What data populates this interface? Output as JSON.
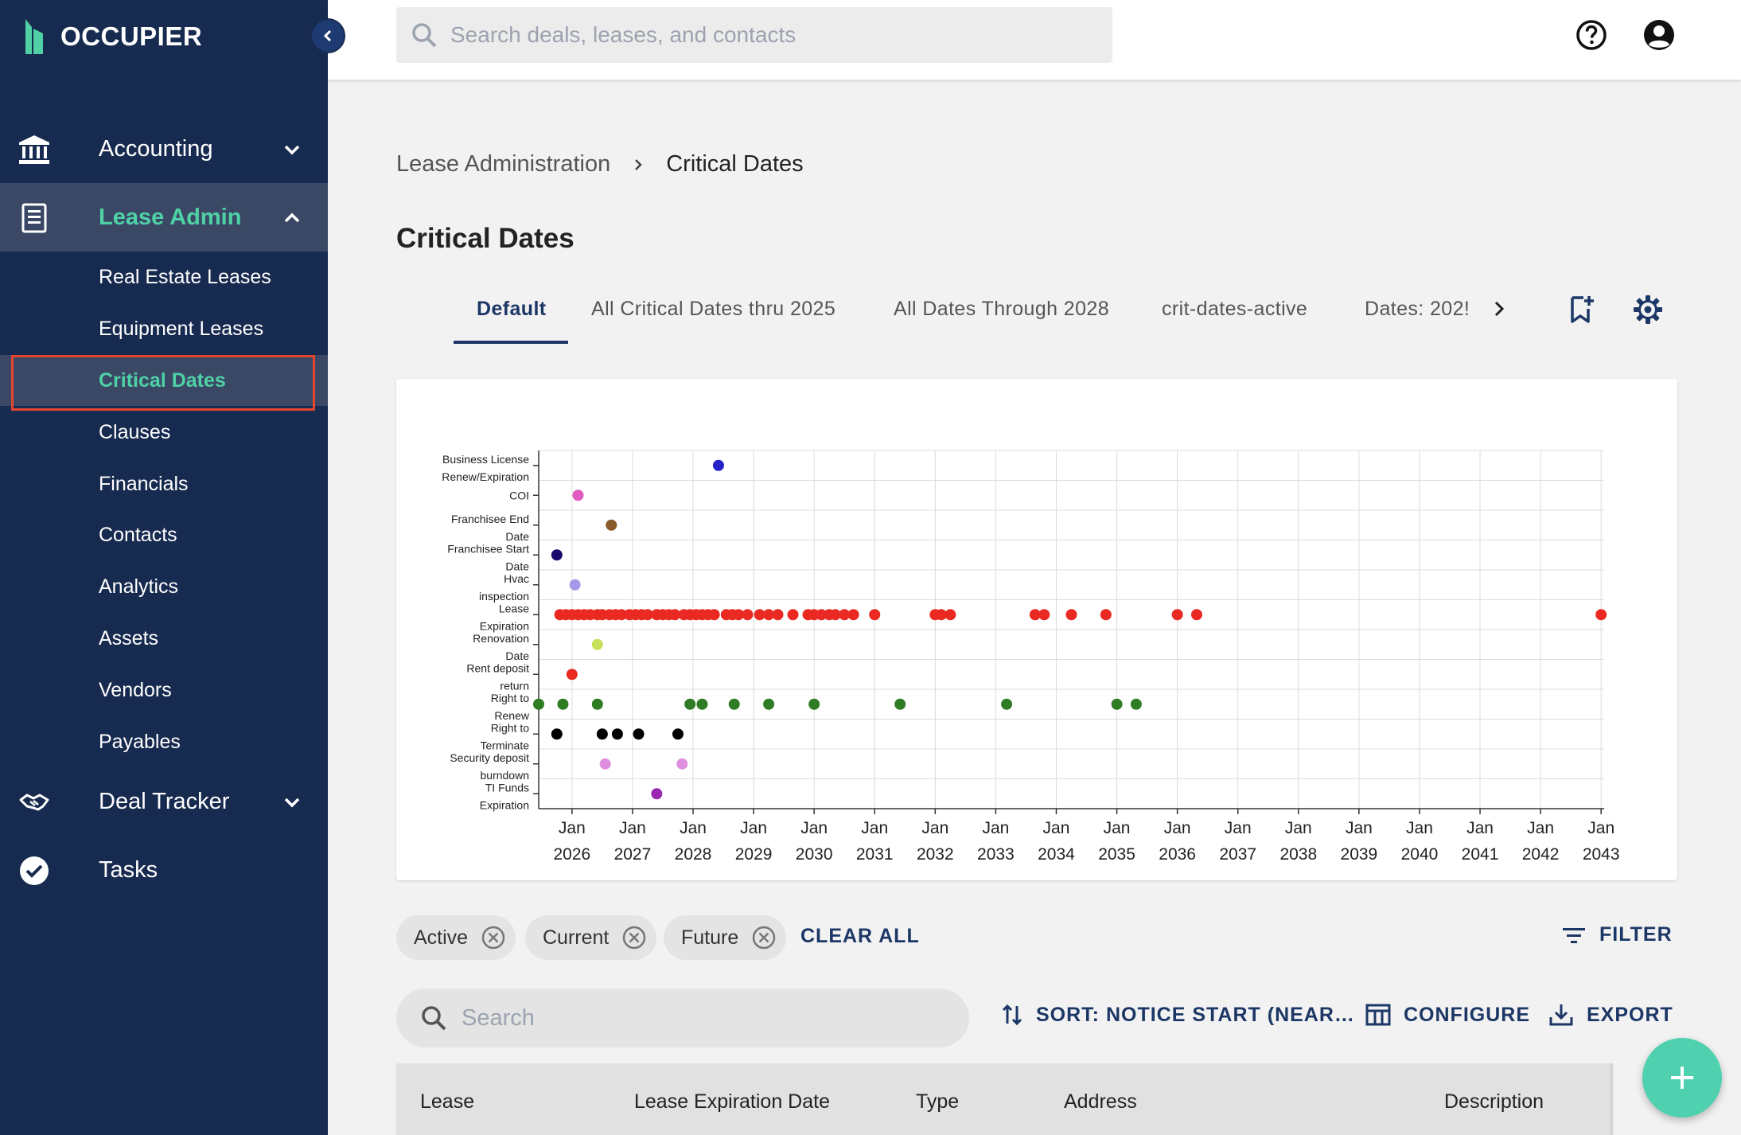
{
  "app": {
    "brand": "OCCUPIER",
    "search_placeholder": "Search deals, leases, and contacts"
  },
  "sidebar": {
    "sections": [
      {
        "label": "Accounting",
        "icon": "bank-icon"
      },
      {
        "label": "Lease Admin",
        "icon": "document-icon"
      },
      {
        "label": "Deal Tracker",
        "icon": "handshake-icon"
      },
      {
        "label": "Tasks",
        "icon": "check-circle-icon"
      }
    ],
    "lease_admin_items": [
      "Real Estate Leases",
      "Equipment Leases",
      "Critical Dates",
      "Clauses",
      "Financials",
      "Contacts",
      "Analytics",
      "Assets",
      "Vendors",
      "Payables"
    ],
    "selected_item": "Critical Dates"
  },
  "breadcrumb": {
    "parent": "Lease Administration",
    "current": "Critical Dates"
  },
  "page": {
    "title": "Critical Dates"
  },
  "tabs": [
    "Default",
    "All Critical Dates thru 2025",
    "All Dates Through 2028",
    "crit-dates-active",
    "Dates: 202!"
  ],
  "active_tab": "Default",
  "chart_data": {
    "type": "scatter",
    "x_axis": {
      "min": 2025.45,
      "max": 2043.05,
      "ticks": [
        2026,
        2027,
        2028,
        2029,
        2030,
        2031,
        2032,
        2033,
        2034,
        2035,
        2036,
        2037,
        2038,
        2039,
        2040,
        2041,
        2042,
        2043
      ],
      "tick_prefix": "Jan"
    },
    "categories": [
      [
        "Business License",
        "Renew/Expiration"
      ],
      [
        "COI"
      ],
      [
        "Franchisee End",
        "Date"
      ],
      [
        "Franchisee Start",
        "Date"
      ],
      [
        "Hvac",
        "inspection"
      ],
      [
        "Lease",
        "Expiration"
      ],
      [
        "Renovation",
        "Date"
      ],
      [
        "Rent deposit",
        "return"
      ],
      [
        "Right to",
        "Renew"
      ],
      [
        "Right to",
        "Terminate"
      ],
      [
        "Security deposit",
        "burndown"
      ],
      [
        "TI Funds",
        "Expiration"
      ]
    ],
    "grid": true,
    "series": [
      {
        "category": 0,
        "color": "#2424c8",
        "x": [
          2028.42
        ]
      },
      {
        "category": 1,
        "color": "#e05cc0",
        "x": [
          2026.1
        ]
      },
      {
        "category": 2,
        "color": "#8b5a2b",
        "x": [
          2026.65
        ]
      },
      {
        "category": 3,
        "color": "#1a0a6e",
        "x": [
          2025.75
        ]
      },
      {
        "category": 4,
        "color": "#a59ae8",
        "x": [
          2026.05
        ]
      },
      {
        "category": 5,
        "color": "#ea2a22",
        "x": [
          2025.8,
          2025.9,
          2026.0,
          2026.1,
          2026.2,
          2026.3,
          2026.42,
          2026.5,
          2026.62,
          2026.72,
          2026.82,
          2026.95,
          2027.05,
          2027.15,
          2027.25,
          2027.4,
          2027.5,
          2027.6,
          2027.7,
          2027.85,
          2027.95,
          2028.05,
          2028.15,
          2028.25,
          2028.35,
          2028.55,
          2028.65,
          2028.75,
          2028.9,
          2029.1,
          2029.25,
          2029.4,
          2029.65,
          2029.9,
          2030.0,
          2030.12,
          2030.25,
          2030.35,
          2030.5,
          2030.65,
          2031.0,
          2032.0,
          2032.1,
          2032.25,
          2033.65,
          2033.8,
          2034.25,
          2034.82,
          2036.0,
          2036.32,
          2043.0
        ]
      },
      {
        "category": 6,
        "color": "#c6e05a",
        "x": [
          2026.42
        ]
      },
      {
        "category": 7,
        "color": "#ea2a22",
        "x": [
          2026.0
        ]
      },
      {
        "category": 8,
        "color": "#2e7d25",
        "x": [
          2025.45,
          2025.85,
          2026.42,
          2027.95,
          2028.15,
          2028.68,
          2029.25,
          2030.0,
          2031.42,
          2033.18,
          2035.0,
          2035.32
        ]
      },
      {
        "category": 9,
        "color": "#000000",
        "x": [
          2025.75,
          2026.5,
          2026.75,
          2027.1,
          2027.75
        ]
      },
      {
        "category": 10,
        "color": "#e08fe0",
        "x": [
          2026.55,
          2027.82
        ]
      },
      {
        "category": 11,
        "color": "#9c27b0",
        "x": [
          2027.4
        ]
      }
    ]
  },
  "filters": {
    "chips": [
      "Active",
      "Current",
      "Future"
    ],
    "clear_all": "CLEAR ALL",
    "filter_label": "FILTER"
  },
  "table": {
    "search_placeholder": "Search",
    "sort_label": "SORT: NOTICE START (NEAR…",
    "configure_label": "CONFIGURE",
    "export_label": "EXPORT",
    "columns": [
      "Lease",
      "Lease Expiration Date",
      "Type",
      "Address",
      "Description"
    ]
  }
}
